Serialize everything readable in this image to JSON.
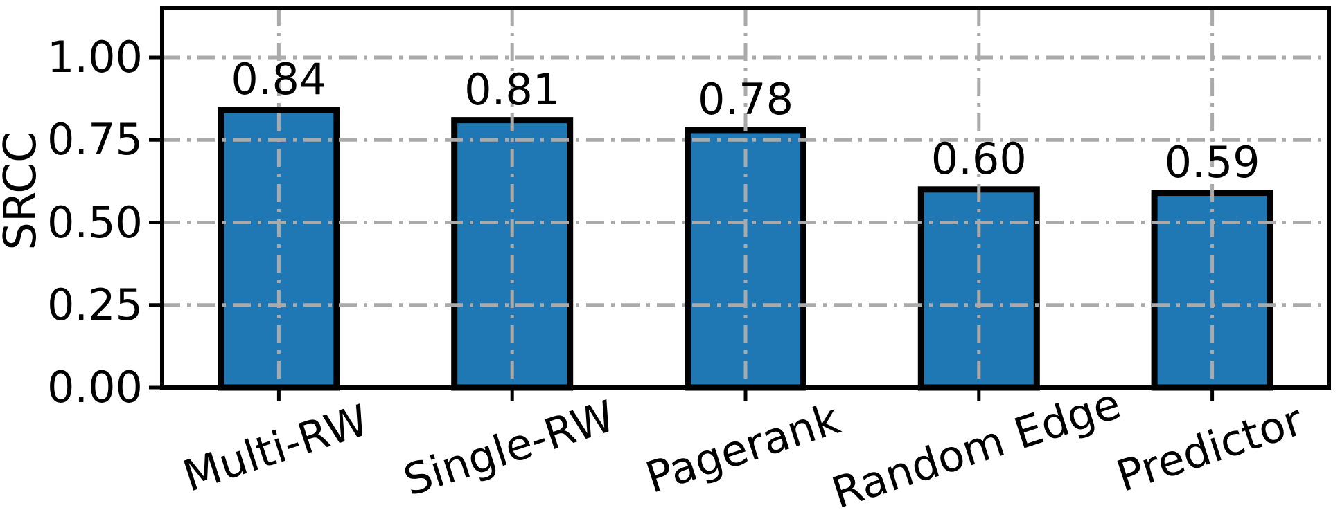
{
  "chart_data": {
    "type": "bar",
    "title": "",
    "xlabel": "",
    "ylabel": "SRCC",
    "categories": [
      "Multi-RW",
      "Single-RW",
      "Pagerank",
      "Random Edge",
      "Predictor"
    ],
    "values": [
      0.84,
      0.81,
      0.78,
      0.6,
      0.59
    ],
    "bar_value_labels": [
      "0.84",
      "0.81",
      "0.78",
      "0.60",
      "0.59"
    ],
    "ytick_values": [
      0.0,
      0.25,
      0.5,
      0.75,
      1.0
    ],
    "ytick_labels": [
      "0.00",
      "0.25",
      "0.50",
      "0.75",
      "1.00"
    ],
    "ylim": [
      0,
      1.15
    ],
    "grid": "on",
    "grid_style": "dash-dot",
    "legend_position": "none",
    "xtick_label_rotation_deg": 18,
    "colors": {
      "bar_fill": "#1f77b4",
      "bar_edge": "#000000",
      "grid": "#aaaaaa",
      "text": "#000000",
      "spine": "#000000",
      "background": "#ffffff"
    }
  }
}
